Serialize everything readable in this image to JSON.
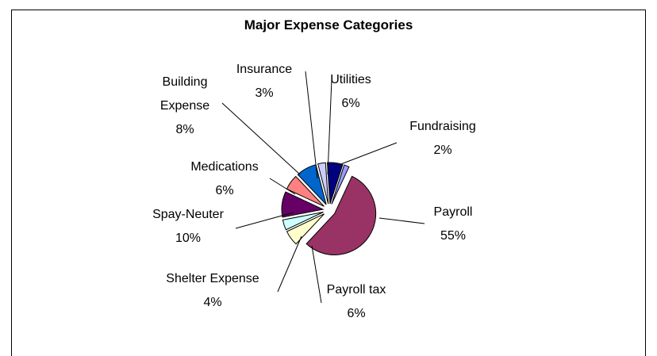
{
  "chart_data": {
    "type": "pie",
    "title": "Major Expense Categories",
    "categories": [
      "Payroll",
      "Payroll tax",
      "Shelter Expense",
      "Spay-Neuter",
      "Medications",
      "Building Expense",
      "Insurance",
      "Utilities",
      "Fundraising"
    ],
    "values": [
      55,
      6,
      4,
      10,
      6,
      8,
      3,
      6,
      2
    ],
    "value_labels": [
      "55%",
      "6%",
      "4%",
      "10%",
      "6%",
      "8%",
      "3%",
      "6%",
      "2%"
    ],
    "colors": [
      "#993366",
      "#FFFFCC",
      "#CCFFFF",
      "#660066",
      "#FF8080",
      "#0066CC",
      "#CCCCFF",
      "#000080",
      "#9999FF"
    ]
  }
}
